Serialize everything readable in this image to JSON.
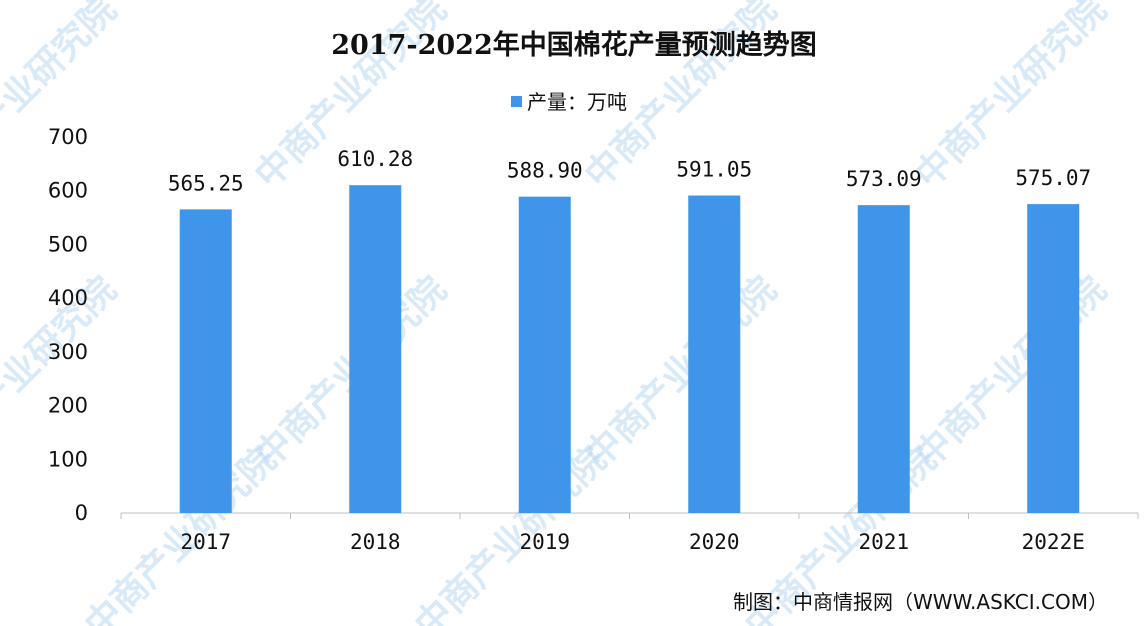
{
  "chart_data": {
    "type": "bar",
    "title": "2017-2022年中国棉花产量预测趋势图",
    "categories": [
      "2017",
      "2018",
      "2019",
      "2020",
      "2021",
      "2022E"
    ],
    "series": [
      {
        "name": "产量：万吨",
        "values": [
          565.25,
          610.28,
          588.9,
          591.05,
          573.09,
          575.07
        ]
      }
    ],
    "data_labels": [
      "565.25",
      "610.28",
      "588.90",
      "591.05",
      "573.09",
      "575.07"
    ],
    "ylim": [
      0,
      700
    ],
    "yticks": [
      0,
      100,
      200,
      300,
      400,
      500,
      600,
      700
    ],
    "xlabel": "",
    "ylabel": "",
    "legend_position": "top-center",
    "grid": false,
    "colors": {
      "bar": "#3f95e9"
    }
  },
  "source_text": "制图：中商情报网（WWW.ASKCI.COM）",
  "watermark_text": "中商产业研究院"
}
